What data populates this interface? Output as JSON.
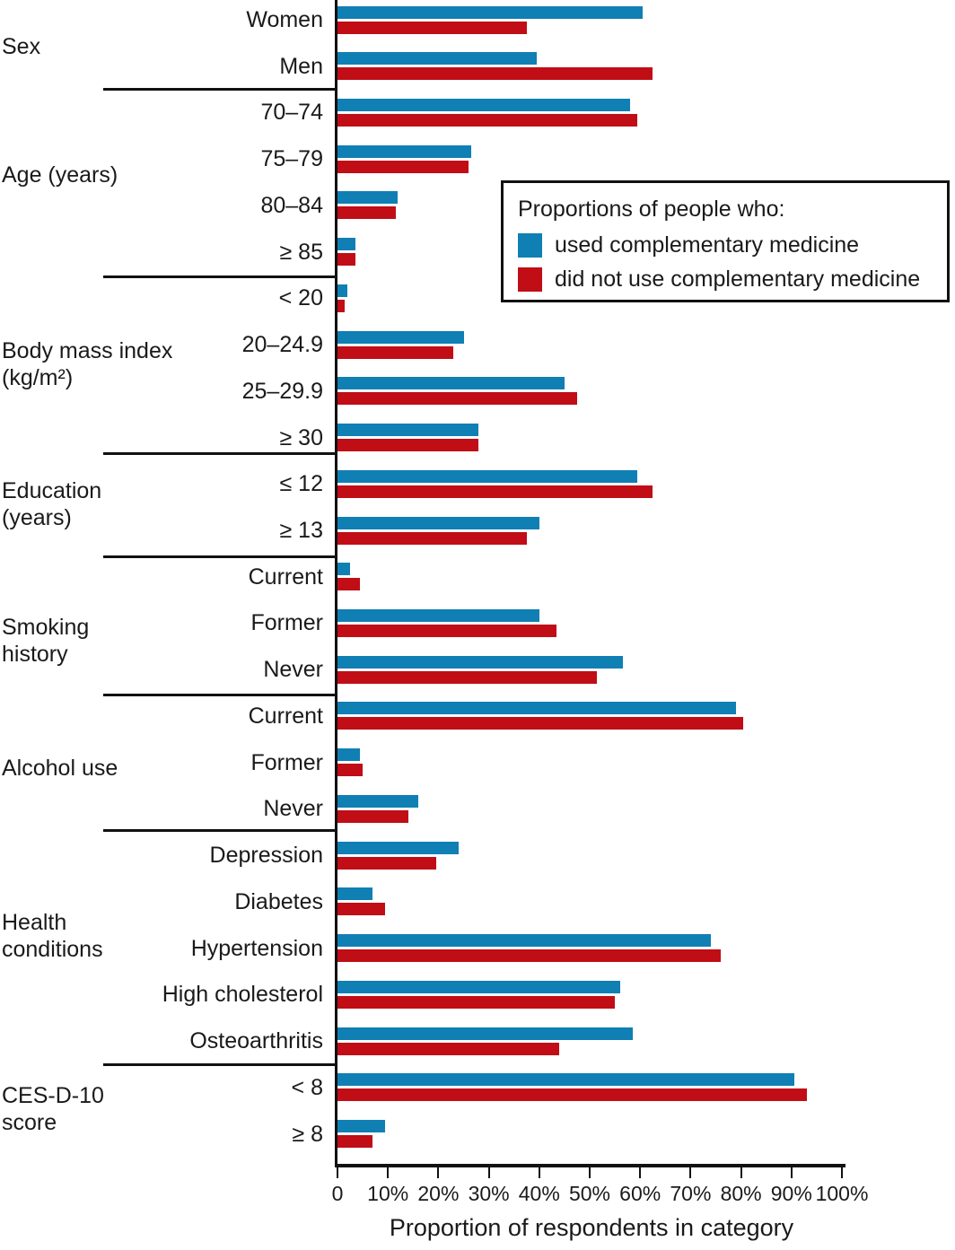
{
  "chart_data": {
    "type": "bar",
    "orientation": "horizontal",
    "xlabel": "Proportion of respondents in category",
    "x_axis": {
      "min": 0,
      "max": 100,
      "tick_step": 10,
      "tick_labels": [
        "0",
        "10%",
        "20%",
        "30%",
        "40%",
        "50%",
        "60%",
        "70%",
        "80%",
        "90%",
        "100%"
      ]
    },
    "legend": {
      "title": "Proportions of people who:",
      "position": "upper right",
      "series": [
        {
          "key": "used",
          "name": "used complementary medicine",
          "color": "#107fb4"
        },
        {
          "key": "not_used",
          "name": "did not use complementary medicine",
          "color": "#c00d16"
        }
      ]
    },
    "groups": [
      {
        "label": "Sex",
        "label_lines": [
          "Sex"
        ],
        "rows": [
          {
            "category": "Women",
            "used": 60.5,
            "not_used": 37.5
          },
          {
            "category": "Men",
            "used": 39.5,
            "not_used": 62.5
          }
        ]
      },
      {
        "label": "Age (years)",
        "label_lines": [
          "Age (years)"
        ],
        "rows": [
          {
            "category": "70–74",
            "used": 58,
            "not_used": 59.5
          },
          {
            "category": "75–79",
            "used": 26.5,
            "not_used": 26
          },
          {
            "category": "80–84",
            "used": 12,
            "not_used": 11.5
          },
          {
            "category": "≥ 85",
            "used": 3.5,
            "not_used": 3.5
          }
        ]
      },
      {
        "label": "Body mass index (kg/m²)",
        "label_lines": [
          "Body mass index",
          "(kg/m²)"
        ],
        "rows": [
          {
            "category": "< 20",
            "used": 2,
            "not_used": 1.5
          },
          {
            "category": "20–24.9",
            "used": 25,
            "not_used": 23
          },
          {
            "category": "25–29.9",
            "used": 45,
            "not_used": 47.5
          },
          {
            "category": "≥ 30",
            "used": 28,
            "not_used": 28
          }
        ]
      },
      {
        "label": "Education (years)",
        "label_lines": [
          "Education",
          "(years)"
        ],
        "rows": [
          {
            "category": "≤ 12",
            "used": 59.5,
            "not_used": 62.5
          },
          {
            "category": "≥ 13",
            "used": 40,
            "not_used": 37.5
          }
        ]
      },
      {
        "label": "Smoking history",
        "label_lines": [
          "Smoking",
          "history"
        ],
        "rows": [
          {
            "category": "Current",
            "used": 2.5,
            "not_used": 4.5
          },
          {
            "category": "Former",
            "used": 40,
            "not_used": 43.5
          },
          {
            "category": "Never",
            "used": 56.5,
            "not_used": 51.5
          }
        ]
      },
      {
        "label": "Alcohol use",
        "label_lines": [
          "Alcohol use"
        ],
        "rows": [
          {
            "category": "Current",
            "used": 79,
            "not_used": 80.5
          },
          {
            "category": "Former",
            "used": 4.5,
            "not_used": 5
          },
          {
            "category": "Never",
            "used": 16,
            "not_used": 14
          }
        ]
      },
      {
        "label": "Health conditions",
        "label_lines": [
          "Health",
          "conditions"
        ],
        "rows": [
          {
            "category": "Depression",
            "used": 24,
            "not_used": 19.5
          },
          {
            "category": "Diabetes",
            "used": 7,
            "not_used": 9.5
          },
          {
            "category": "Hypertension",
            "used": 74,
            "not_used": 76
          },
          {
            "category": "High cholesterol",
            "used": 56,
            "not_used": 55
          },
          {
            "category": "Osteoarthritis",
            "used": 58.5,
            "not_used": 44
          }
        ]
      },
      {
        "label": "CES-D-10 score",
        "label_lines": [
          "CES-D-10",
          "score"
        ],
        "rows": [
          {
            "category": "< 8",
            "used": 90.5,
            "not_used": 93
          },
          {
            "category": "≥ 8",
            "used": 9.5,
            "not_used": 7
          }
        ]
      }
    ]
  }
}
